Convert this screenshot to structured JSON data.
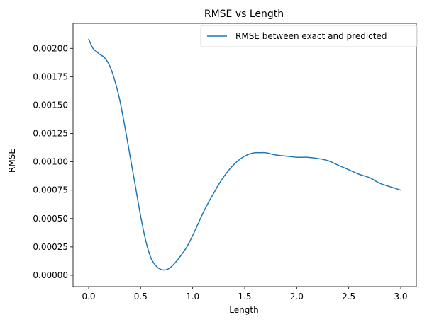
{
  "chart_data": {
    "type": "line",
    "title": "RMSE vs Length",
    "xlabel": "Length",
    "ylabel": "RMSE",
    "xlim": [
      -0.15,
      3.15
    ],
    "ylim": [
      -0.0001,
      0.00222
    ],
    "xticks": [
      0.0,
      0.5,
      1.0,
      1.5,
      2.0,
      2.5,
      3.0
    ],
    "xtick_labels": [
      "0.0",
      "0.5",
      "1.0",
      "1.5",
      "2.0",
      "2.5",
      "3.0"
    ],
    "yticks": [
      0,
      0.00025,
      0.0005,
      0.00075,
      0.001,
      0.00125,
      0.0015,
      0.00175,
      0.002
    ],
    "ytick_labels": [
      "0.00000",
      "0.00025",
      "0.00050",
      "0.00075",
      "0.00100",
      "0.00125",
      "0.00150",
      "0.00175",
      "0.00200"
    ],
    "grid": false,
    "legend_position": "top-right",
    "series": [
      {
        "name": "RMSE between exact and predicted",
        "color": "#1f77b4",
        "x": [
          0.0,
          0.03,
          0.05,
          0.08,
          0.1,
          0.15,
          0.2,
          0.25,
          0.3,
          0.35,
          0.4,
          0.45,
          0.5,
          0.55,
          0.6,
          0.65,
          0.7,
          0.75,
          0.8,
          0.85,
          0.9,
          0.95,
          1.0,
          1.05,
          1.1,
          1.15,
          1.2,
          1.25,
          1.3,
          1.35,
          1.4,
          1.45,
          1.5,
          1.55,
          1.6,
          1.65,
          1.7,
          1.8,
          1.9,
          2.0,
          2.1,
          2.2,
          2.3,
          2.4,
          2.5,
          2.6,
          2.7,
          2.8,
          2.9,
          3.0
        ],
        "y": [
          0.00208,
          0.00202,
          0.00199,
          0.00197,
          0.00195,
          0.00192,
          0.00185,
          0.00172,
          0.00154,
          0.0013,
          0.00104,
          0.00078,
          0.00052,
          0.0003,
          0.00015,
          8e-05,
          5e-05,
          5e-05,
          8e-05,
          0.00013,
          0.00019,
          0.00026,
          0.00035,
          0.00045,
          0.00055,
          0.00064,
          0.00072,
          0.0008,
          0.00087,
          0.00093,
          0.00098,
          0.00102,
          0.00105,
          0.00107,
          0.00108,
          0.00108,
          0.00108,
          0.00106,
          0.00105,
          0.00104,
          0.00104,
          0.00103,
          0.00101,
          0.00097,
          0.00093,
          0.00089,
          0.00086,
          0.00081,
          0.00078,
          0.00075
        ]
      }
    ]
  }
}
